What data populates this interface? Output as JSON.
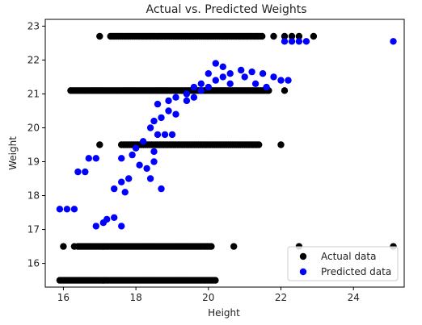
{
  "chart_data": {
    "type": "scatter",
    "title": "Actual vs. Predicted Weights",
    "xlabel": "Height",
    "ylabel": "Weight",
    "xlim": [
      15.5,
      25.4
    ],
    "ylim": [
      15.3,
      23.2
    ],
    "xticks": [
      16,
      18,
      20,
      22,
      24
    ],
    "yticks": [
      16,
      17,
      18,
      19,
      20,
      21,
      22,
      23
    ],
    "grid": false,
    "legend_position": "lower right",
    "series": [
      {
        "name": "Actual data",
        "color": "#000000",
        "bands": [
          {
            "y": 22.7,
            "x_from": 17.3,
            "x_to": 21.5
          },
          {
            "y": 21.1,
            "x_from": 16.2,
            "x_to": 21.7
          },
          {
            "y": 19.5,
            "x_from": 17.6,
            "x_to": 21.4
          },
          {
            "y": 16.5,
            "x_from": 16.4,
            "x_to": 20.1
          },
          {
            "y": 15.5,
            "x_from": 15.9,
            "x_to": 20.2
          }
        ],
        "points": [
          {
            "x": 17.0,
            "y": 22.7
          },
          {
            "x": 21.8,
            "y": 22.7
          },
          {
            "x": 22.1,
            "y": 22.7
          },
          {
            "x": 22.3,
            "y": 22.7
          },
          {
            "x": 22.5,
            "y": 22.7
          },
          {
            "x": 22.9,
            "y": 22.7
          },
          {
            "x": 22.1,
            "y": 21.1
          },
          {
            "x": 22.0,
            "y": 19.5
          },
          {
            "x": 17.0,
            "y": 19.5
          },
          {
            "x": 16.0,
            "y": 16.5
          },
          {
            "x": 16.3,
            "y": 16.5
          },
          {
            "x": 20.7,
            "y": 16.5
          },
          {
            "x": 22.5,
            "y": 16.5
          },
          {
            "x": 25.1,
            "y": 16.5
          }
        ]
      },
      {
        "name": "Predicted data",
        "color": "#0000ff",
        "points": [
          {
            "x": 15.9,
            "y": 17.6
          },
          {
            "x": 16.1,
            "y": 17.6
          },
          {
            "x": 16.3,
            "y": 17.6
          },
          {
            "x": 16.4,
            "y": 18.7
          },
          {
            "x": 16.6,
            "y": 18.7
          },
          {
            "x": 16.7,
            "y": 19.1
          },
          {
            "x": 16.9,
            "y": 19.1
          },
          {
            "x": 16.9,
            "y": 17.1
          },
          {
            "x": 17.1,
            "y": 17.2
          },
          {
            "x": 17.2,
            "y": 17.3
          },
          {
            "x": 17.4,
            "y": 17.35
          },
          {
            "x": 17.6,
            "y": 17.1
          },
          {
            "x": 17.4,
            "y": 18.2
          },
          {
            "x": 17.6,
            "y": 18.4
          },
          {
            "x": 17.7,
            "y": 18.1
          },
          {
            "x": 17.8,
            "y": 18.5
          },
          {
            "x": 17.6,
            "y": 19.1
          },
          {
            "x": 17.9,
            "y": 19.2
          },
          {
            "x": 18.0,
            "y": 19.4
          },
          {
            "x": 18.2,
            "y": 19.6
          },
          {
            "x": 18.1,
            "y": 18.9
          },
          {
            "x": 18.3,
            "y": 18.8
          },
          {
            "x": 18.5,
            "y": 19.0
          },
          {
            "x": 18.4,
            "y": 18.5
          },
          {
            "x": 18.7,
            "y": 18.2
          },
          {
            "x": 18.5,
            "y": 19.3
          },
          {
            "x": 18.6,
            "y": 19.8
          },
          {
            "x": 18.8,
            "y": 19.8
          },
          {
            "x": 19.0,
            "y": 19.8
          },
          {
            "x": 18.4,
            "y": 20.0
          },
          {
            "x": 18.5,
            "y": 20.2
          },
          {
            "x": 18.7,
            "y": 20.3
          },
          {
            "x": 18.9,
            "y": 20.5
          },
          {
            "x": 19.1,
            "y": 20.4
          },
          {
            "x": 18.6,
            "y": 20.7
          },
          {
            "x": 18.9,
            "y": 20.8
          },
          {
            "x": 19.1,
            "y": 20.9
          },
          {
            "x": 19.4,
            "y": 20.8
          },
          {
            "x": 19.6,
            "y": 20.9
          },
          {
            "x": 19.8,
            "y": 21.1
          },
          {
            "x": 20.0,
            "y": 21.2
          },
          {
            "x": 20.2,
            "y": 21.4
          },
          {
            "x": 20.4,
            "y": 21.5
          },
          {
            "x": 20.6,
            "y": 21.6
          },
          {
            "x": 20.9,
            "y": 21.7
          },
          {
            "x": 21.2,
            "y": 21.65
          },
          {
            "x": 21.5,
            "y": 21.6
          },
          {
            "x": 21.8,
            "y": 21.5
          },
          {
            "x": 20.2,
            "y": 21.9
          },
          {
            "x": 20.4,
            "y": 21.8
          },
          {
            "x": 20.0,
            "y": 21.6
          },
          {
            "x": 19.8,
            "y": 21.3
          },
          {
            "x": 19.6,
            "y": 21.2
          },
          {
            "x": 19.4,
            "y": 21.0
          },
          {
            "x": 20.6,
            "y": 21.3
          },
          {
            "x": 21.0,
            "y": 21.5
          },
          {
            "x": 21.3,
            "y": 21.3
          },
          {
            "x": 21.6,
            "y": 21.2
          },
          {
            "x": 22.0,
            "y": 21.4
          },
          {
            "x": 22.2,
            "y": 21.4
          },
          {
            "x": 22.1,
            "y": 22.55
          },
          {
            "x": 22.3,
            "y": 22.55
          },
          {
            "x": 22.5,
            "y": 22.55
          },
          {
            "x": 22.7,
            "y": 22.55
          },
          {
            "x": 25.1,
            "y": 22.55
          }
        ]
      }
    ]
  }
}
